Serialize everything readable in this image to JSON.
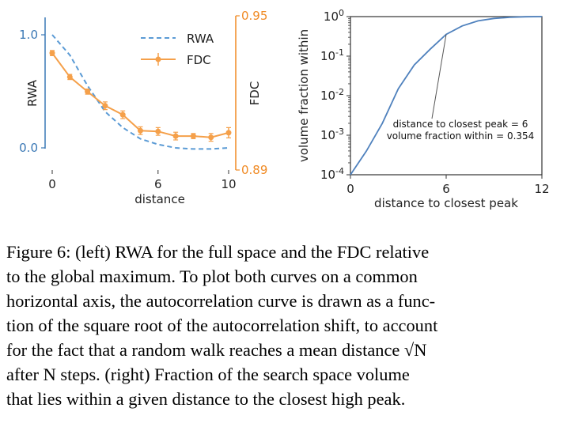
{
  "chart_data": [
    {
      "type": "line",
      "x": [
        0,
        1,
        2,
        3,
        4,
        5,
        6,
        7,
        8,
        9,
        10
      ],
      "xticks": [
        "0",
        "6",
        "10"
      ],
      "xlabel": "distance",
      "left_axis": {
        "label": "RWA",
        "ticks": [
          "1.0",
          "0.0"
        ],
        "ylim": [
          -0.05,
          1.0
        ],
        "color": "#3a78b5"
      },
      "right_axis": {
        "label": "FDC",
        "ticks": [
          "0.95",
          "0.89"
        ],
        "ylim": [
          0.89,
          0.95
        ],
        "color": "#f08a24"
      },
      "series": [
        {
          "name": "RWA",
          "style": "dashed",
          "axis": "left",
          "color": "#5b9bd5",
          "values": [
            1.0,
            0.82,
            0.55,
            0.32,
            0.18,
            0.08,
            0.03,
            0.0,
            -0.01,
            -0.01,
            0.0
          ]
        },
        {
          "name": "FDC",
          "style": "solid-markers",
          "axis": "right",
          "color": "#f5a04a",
          "values": [
            0.9355,
            0.9262,
            0.9205,
            0.915,
            0.9115,
            0.9053,
            0.905,
            0.9032,
            0.9032,
            0.9027,
            0.9045
          ],
          "errors": [
            0.001,
            0.001,
            0.001,
            0.0015,
            0.0015,
            0.0015,
            0.0015,
            0.0015,
            0.001,
            0.0015,
            0.002
          ]
        }
      ],
      "legend": "top-right"
    },
    {
      "type": "line",
      "x": [
        0,
        1,
        2,
        3,
        4,
        5,
        6,
        7,
        8,
        9,
        10,
        11,
        12
      ],
      "xticks": [
        "0",
        "6",
        "12"
      ],
      "xlabel": "distance to closest peak",
      "ylabel": "volume fraction within",
      "yscale": "log",
      "ylim": [
        0.0001,
        1
      ],
      "yticks": [
        {
          "base": "10",
          "exp": "0"
        },
        {
          "base": "10",
          "exp": "-1"
        },
        {
          "base": "10",
          "exp": "-2"
        },
        {
          "base": "10",
          "exp": "-3"
        },
        {
          "base": "10",
          "exp": "-4"
        }
      ],
      "series": [
        {
          "color": "#4f81bd",
          "values": [
            0.0001,
            0.0004,
            0.002,
            0.015,
            0.06,
            0.15,
            0.354,
            0.58,
            0.78,
            0.9,
            0.96,
            0.99,
            1.0
          ]
        }
      ],
      "annotation": {
        "lines": [
          "distance to closest peak = 6",
          "volume fraction within = 0.354"
        ],
        "point": {
          "x": 6,
          "y": 0.354
        }
      }
    }
  ],
  "caption": {
    "lines": [
      "Figure 6: (left) RWA for the full space and the FDC relative",
      "to the global maximum. To plot both curves on a common",
      "horizontal axis, the autocorrelation curve is drawn as a func-",
      "tion of the square root of the autocorrelation shift, to account",
      "for the fact that a random walk reaches a mean distance √N",
      "after N steps. (right) Fraction of the search space volume",
      "that lies within a given distance to the closest high peak."
    ]
  }
}
